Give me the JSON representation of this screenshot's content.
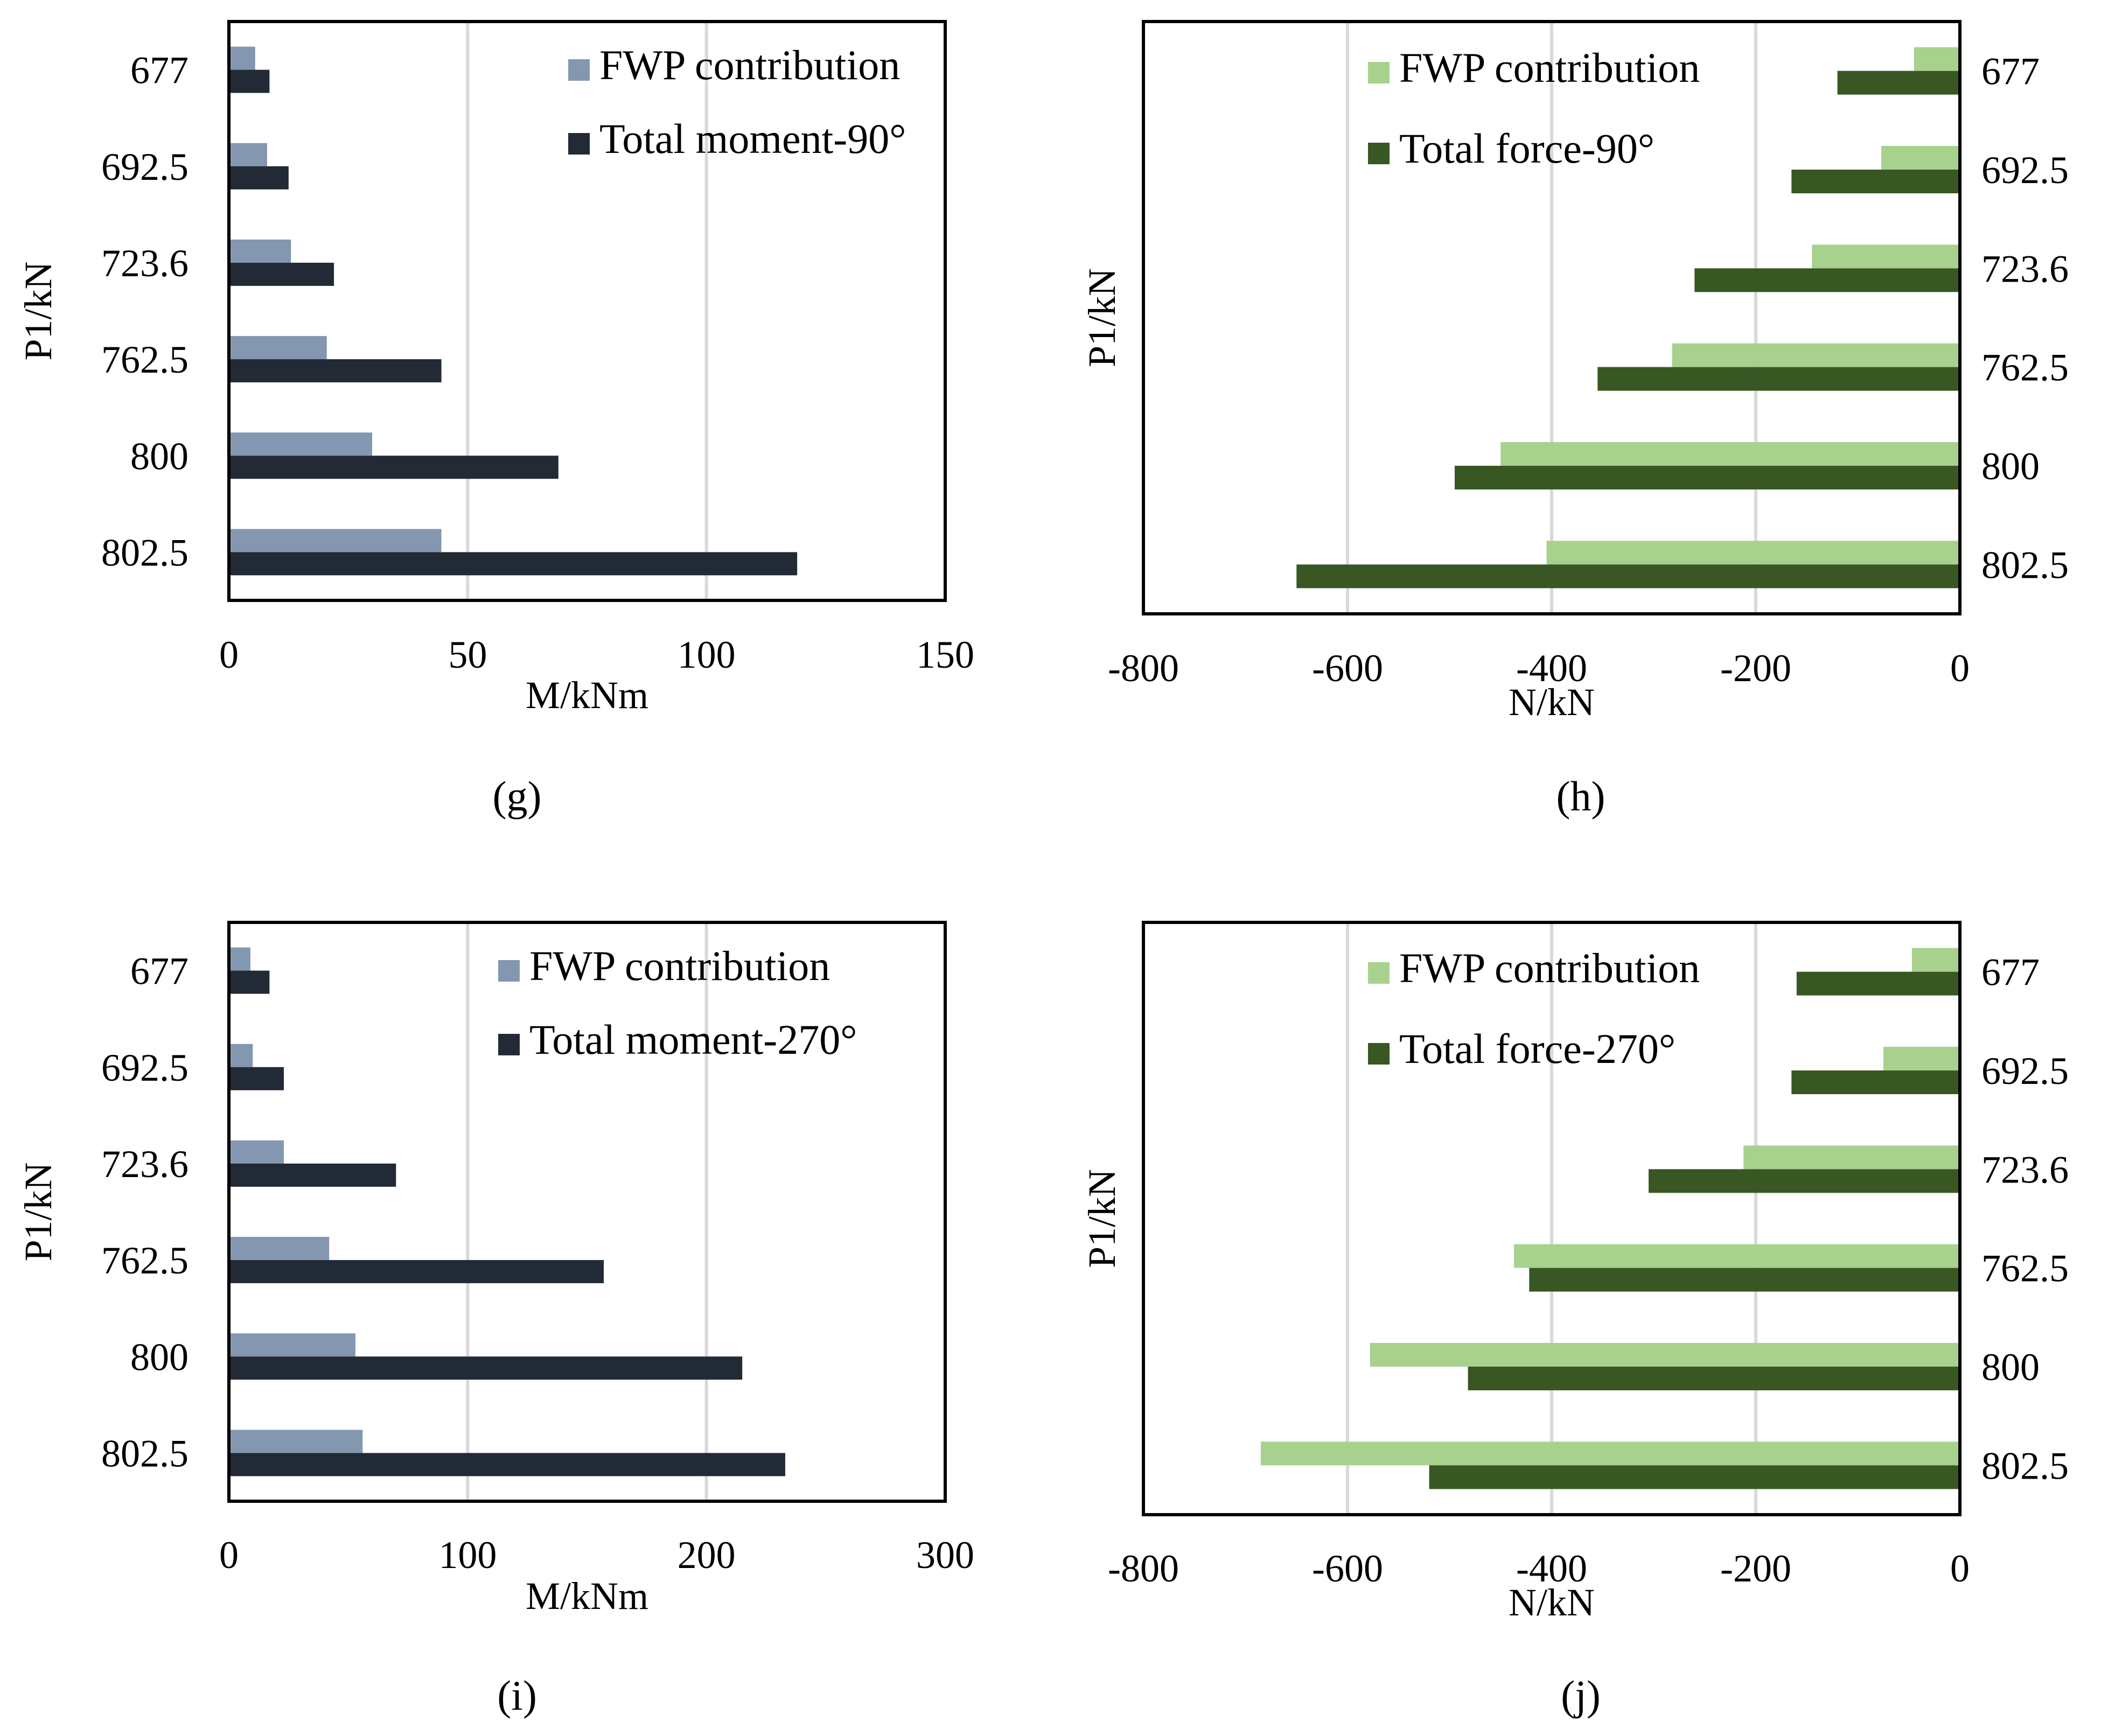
{
  "colors": {
    "moment_fwp": "#8497B0",
    "moment_total": "#222A35",
    "force_fwp": "#A9D18E",
    "force_total": "#385723",
    "grid": "#d9d9d9",
    "frame": "#000000"
  },
  "chart_data": [
    {
      "type": "bar",
      "orientation": "horizontal",
      "caption": "(g)",
      "categories": [
        "677",
        "692.5",
        "723.6",
        "762.5",
        "800",
        "802.5"
      ],
      "series": [
        {
          "name": "FWP contribution",
          "values": [
            5.5,
            8,
            13,
            20.5,
            30,
            44.5
          ]
        },
        {
          "name": "Total moment-90°",
          "values": [
            8.5,
            12.5,
            22,
            44.5,
            69,
            119
          ]
        }
      ],
      "xlabel": "M/kNm",
      "ylabel": "P1/kN",
      "xlim": [
        0,
        150
      ],
      "xticks": [
        "0",
        "50",
        "100",
        "150"
      ],
      "ytick_side": "left",
      "grid": true,
      "legend": "top-right"
    },
    {
      "type": "bar",
      "orientation": "horizontal",
      "caption": "(h)",
      "categories": [
        "677",
        "692.5",
        "723.6",
        "762.5",
        "800",
        "802.5"
      ],
      "series": [
        {
          "name": "FWP contribution",
          "values": [
            -45,
            -77,
            -145,
            -282,
            -450,
            -405
          ]
        },
        {
          "name": "Total force-90°",
          "values": [
            -120,
            -165,
            -260,
            -355,
            -495,
            -650
          ]
        }
      ],
      "xlabel": "N/kN",
      "ylabel": "P1/kN",
      "xlim": [
        -800,
        0
      ],
      "xticks": [
        "-800",
        "-600",
        "-400",
        "-200",
        "0"
      ],
      "ytick_side": "right",
      "grid": true,
      "legend": "top-left"
    },
    {
      "type": "bar",
      "orientation": "horizontal",
      "caption": "(i)",
      "categories": [
        "677",
        "692.5",
        "723.6",
        "762.5",
        "800",
        "802.5"
      ],
      "series": [
        {
          "name": "FWP contribution",
          "values": [
            9,
            10,
            23,
            42,
            53,
            56
          ]
        },
        {
          "name": "Total moment-270°",
          "values": [
            17,
            23,
            70,
            157,
            215,
            233
          ]
        }
      ],
      "xlabel": "M/kNm",
      "ylabel": "P1/kN",
      "xlim": [
        0,
        300
      ],
      "xticks": [
        "0",
        "100",
        "200",
        "300"
      ],
      "ytick_side": "left",
      "grid": true,
      "legend": "top-right"
    },
    {
      "type": "bar",
      "orientation": "horizontal",
      "caption": "(j)",
      "categories": [
        "677",
        "692.5",
        "723.6",
        "762.5",
        "800",
        "802.5"
      ],
      "series": [
        {
          "name": "FWP contribution",
          "values": [
            -47,
            -75,
            -212,
            -437,
            -578,
            -685
          ]
        },
        {
          "name": "Total force-270°",
          "values": [
            -160,
            -165,
            -305,
            -422,
            -482,
            -520
          ]
        }
      ],
      "xlabel": "N/kN",
      "ylabel": "P1/kN",
      "xlim": [
        -800,
        0
      ],
      "xticks": [
        "-800",
        "-600",
        "-400",
        "-200",
        "0"
      ],
      "ytick_side": "right",
      "grid": true,
      "legend": "top-left"
    }
  ]
}
